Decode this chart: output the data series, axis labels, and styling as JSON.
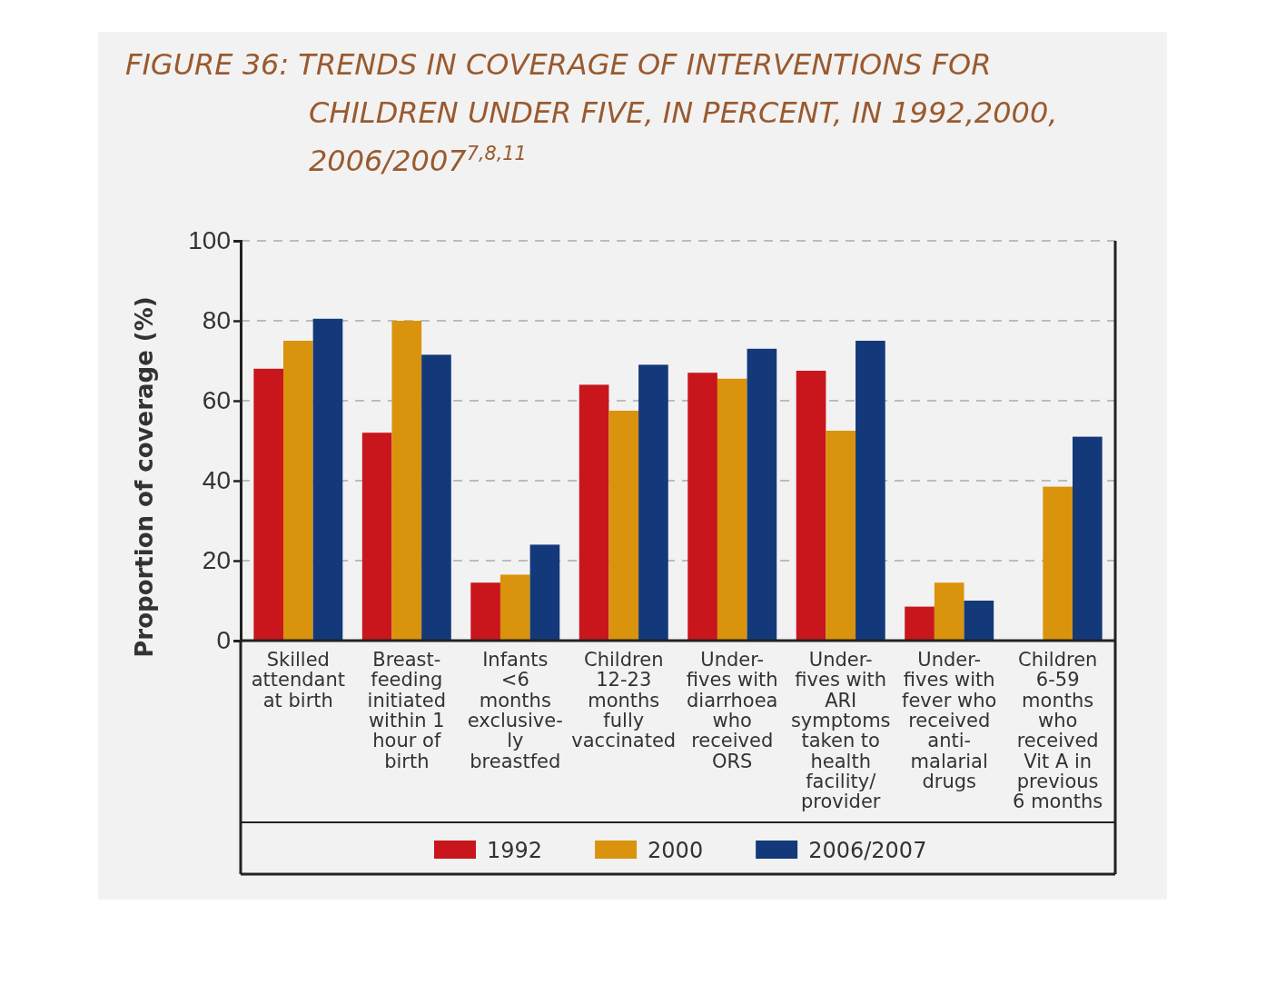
{
  "chart_data": {
    "type": "bar",
    "title": "FIGURE 36: TRENDS IN COVERAGE OF INTERVENTIONS FOR CHILDREN UNDER FIVE, IN PERCENT, IN 1992,2000, 2006/2007$^{7,8,11}$",
    "ylabel": "Proportion of coverage (%)",
    "categories": [
      "Skilled attendant at birth",
      "Breast-feeding initiated within 1 hour of birth",
      "Infants <6 months exclusive-ly breastfed",
      "Children 12-23 months fully vaccinated",
      "Under-fives with diarrhoea who received ORS",
      "Under-fives with ARI symptoms taken to health facility/ provider",
      "Under-fives with fever who received anti-malarial drugs",
      "Children 6-59 months who received Vit A in previous 6 months"
    ],
    "series": [
      {
        "name": "1992",
        "color": "#c8161c",
        "values": [
          68,
          52,
          14.5,
          64,
          67,
          67.5,
          8.5,
          null
        ]
      },
      {
        "name": "2000",
        "color": "#d9930c",
        "values": [
          75,
          80,
          16.5,
          57.5,
          65.5,
          52.5,
          14.5,
          38.5
        ]
      },
      {
        "name": "2006/2007",
        "color": "#13397a",
        "values": [
          80.5,
          71.5,
          24,
          69,
          73,
          75,
          10,
          51
        ]
      }
    ],
    "ylim": [
      0,
      100
    ],
    "yticks": [
      0,
      20,
      40,
      60,
      80,
      100
    ],
    "grid": "y",
    "legend": "bottom"
  }
}
